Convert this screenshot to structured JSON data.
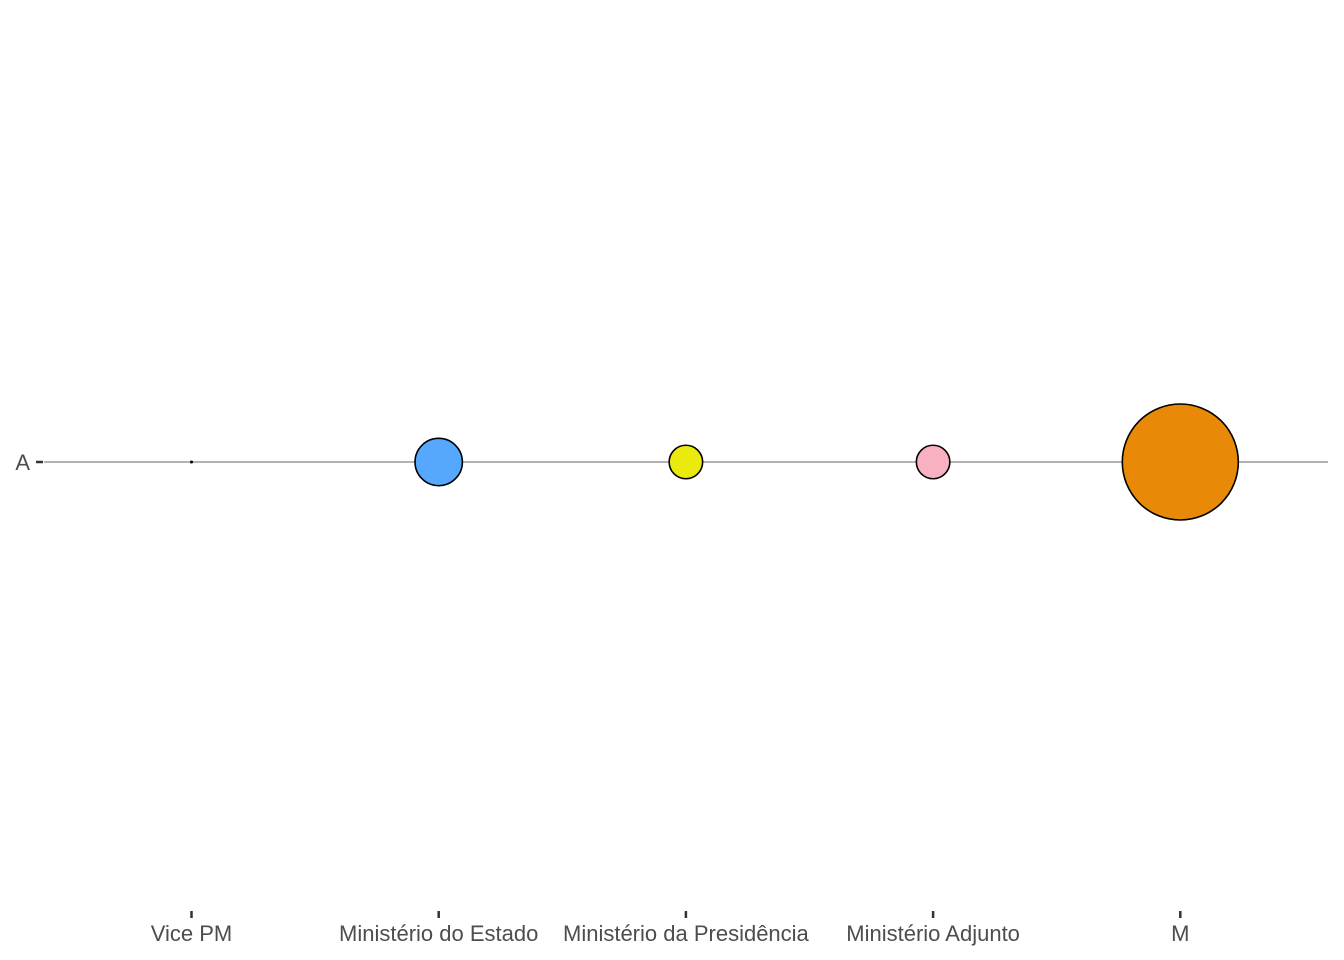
{
  "chart_data": {
    "type": "scatter",
    "title": "",
    "xlabel": "",
    "ylabel": "",
    "categories": [
      "Vice PM",
      "Ministério do Estado",
      "Ministério da Presidência",
      "Ministério Adjunto",
      "M"
    ],
    "y_categories": [
      "A"
    ],
    "points": [
      {
        "x": "Vice PM",
        "y": "A",
        "size": 0,
        "color": "#000000"
      },
      {
        "x": "Ministério do Estado",
        "y": "A",
        "size": 1,
        "color": "#56A8FF"
      },
      {
        "x": "Ministério da Presidência",
        "y": "A",
        "size": 0.5,
        "color": "#EAEA0C"
      },
      {
        "x": "Ministério Adjunto",
        "y": "A",
        "size": 0.5,
        "color": "#F9B0C0"
      },
      {
        "x": "M",
        "y": "A",
        "size": 6,
        "color": "#E88A07"
      }
    ],
    "reference_line": {
      "y": "A",
      "color": "#b3b3b3"
    },
    "grid": false,
    "legend": "none"
  }
}
